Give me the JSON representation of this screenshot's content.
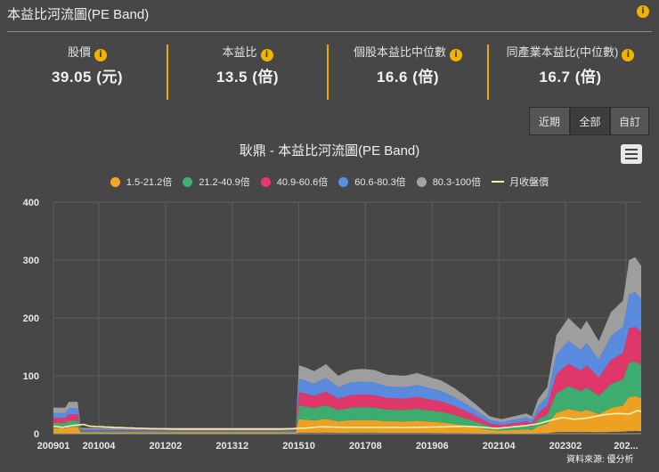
{
  "header": {
    "title": "本益比河流圖(PE Band)",
    "info_icon": "info-icon"
  },
  "stats": [
    {
      "label": "股價",
      "value": "39.05 (元)"
    },
    {
      "label": "本益比",
      "value": "13.5 (倍)"
    },
    {
      "label": "個股本益比中位數",
      "value": "16.6 (倍)"
    },
    {
      "label": "同產業本益比(中位數)",
      "value": "16.7 (倍)"
    }
  ],
  "range_buttons": {
    "recent": "近期",
    "all": "全部",
    "custom": "自訂",
    "active": "全部"
  },
  "colors": {
    "accent": "#f0a800",
    "background": "#474747"
  },
  "chart_data": {
    "type": "area",
    "title": "耿鼎 - 本益比河流圖(PE Band)",
    "ylim": [
      0,
      400
    ],
    "yticks": [
      0,
      100,
      200,
      300,
      400
    ],
    "xtick_labels": [
      "200901",
      "201004",
      "201202",
      "201312",
      "201510",
      "201708",
      "201906",
      "202104",
      "202302",
      "202..."
    ],
    "xtick_index": [
      0,
      15,
      37,
      59,
      81,
      103,
      125,
      147,
      169,
      189
    ],
    "series": [
      {
        "name": "1.5-21.2倍",
        "color": "#f5a623",
        "kind": "band"
      },
      {
        "name": "21.2-40.9倍",
        "color": "#3cb371",
        "kind": "band"
      },
      {
        "name": "40.9-60.6倍",
        "color": "#e8376b",
        "kind": "band"
      },
      {
        "name": "60.6-80.3倍",
        "color": "#5b8ee6",
        "kind": "band"
      },
      {
        "name": "80.3-100倍",
        "color": "#a3a3a3",
        "kind": "band"
      },
      {
        "name": "月收盤價",
        "color": "#f5f0a8",
        "kind": "line"
      }
    ],
    "eps_basis": [
      [
        0,
        0.45
      ],
      [
        4,
        0.45
      ],
      [
        5,
        0.55
      ],
      [
        8,
        0.55
      ],
      [
        9,
        0.1
      ],
      [
        80,
        0.1
      ],
      [
        81,
        1.18
      ],
      [
        83,
        1.15
      ],
      [
        86,
        1.08
      ],
      [
        90,
        1.2
      ],
      [
        94,
        1.0
      ],
      [
        98,
        1.1
      ],
      [
        102,
        1.12
      ],
      [
        106,
        1.1
      ],
      [
        110,
        1.02
      ],
      [
        116,
        1.0
      ],
      [
        120,
        1.05
      ],
      [
        124,
        0.98
      ],
      [
        128,
        0.92
      ],
      [
        132,
        0.8
      ],
      [
        136,
        0.65
      ],
      [
        140,
        0.48
      ],
      [
        144,
        0.3
      ],
      [
        148,
        0.25
      ],
      [
        152,
        0.3
      ],
      [
        156,
        0.35
      ],
      [
        158,
        0.3
      ],
      [
        160,
        0.6
      ],
      [
        163,
        0.8
      ],
      [
        166,
        1.7
      ],
      [
        170,
        2.0
      ],
      [
        174,
        1.8
      ],
      [
        176,
        1.95
      ],
      [
        180,
        1.6
      ],
      [
        184,
        2.1
      ],
      [
        188,
        2.3
      ],
      [
        190,
        3.0
      ],
      [
        192,
        3.05
      ],
      [
        194,
        2.9
      ]
    ],
    "close_price": [
      [
        0,
        13
      ],
      [
        3,
        11
      ],
      [
        6,
        14
      ],
      [
        10,
        16
      ],
      [
        12,
        13
      ],
      [
        20,
        11
      ],
      [
        30,
        9
      ],
      [
        40,
        8
      ],
      [
        60,
        8
      ],
      [
        75,
        8
      ],
      [
        80,
        9
      ],
      [
        84,
        10
      ],
      [
        88,
        12
      ],
      [
        96,
        11
      ],
      [
        100,
        11
      ],
      [
        110,
        11
      ],
      [
        120,
        11
      ],
      [
        130,
        12
      ],
      [
        136,
        13
      ],
      [
        142,
        11
      ],
      [
        146,
        9
      ],
      [
        150,
        11
      ],
      [
        156,
        14
      ],
      [
        160,
        17
      ],
      [
        164,
        23
      ],
      [
        168,
        28
      ],
      [
        172,
        25
      ],
      [
        176,
        27
      ],
      [
        182,
        33
      ],
      [
        186,
        35
      ],
      [
        190,
        34
      ],
      [
        193,
        40
      ],
      [
        194,
        38
      ]
    ]
  },
  "footer": {
    "source": "資料來源: 優分析"
  }
}
